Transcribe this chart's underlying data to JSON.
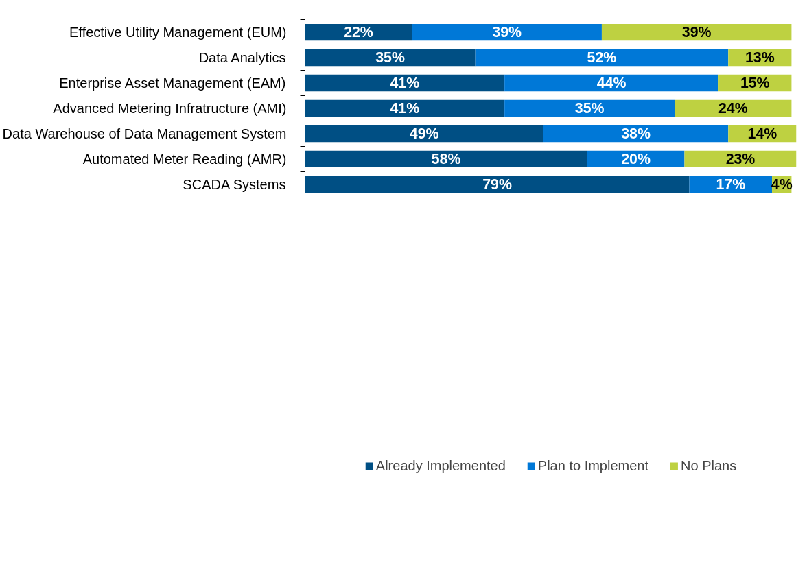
{
  "chart_data": {
    "type": "bar",
    "orientation": "horizontal",
    "stacked": true,
    "data_labels": true,
    "legend": "bottom",
    "grid": false,
    "tick_labels": "y",
    "categories": [
      "Effective Utility Management (EUM)",
      "Data Analytics",
      "Enterprise Asset Management (EAM)",
      "Advanced Metering Infratructure (AMI)",
      "Data Warehouse of Data Management System",
      "Automated Meter Reading (AMR)",
      "SCADA Systems"
    ],
    "series": [
      {
        "name": "Already Implemented",
        "color": "#004f84",
        "values": [
          22,
          35,
          41,
          41,
          49,
          58,
          79
        ],
        "value_labels": [
          "22%",
          "35%",
          "41%",
          "41%",
          "49%",
          "58%",
          "79%"
        ]
      },
      {
        "name": "Plan to Implement",
        "color": "#0078d7",
        "values": [
          39,
          52,
          44,
          35,
          38,
          20,
          17
        ],
        "value_labels": [
          "39%",
          "52%",
          "44%",
          "35%",
          "38%",
          "20%",
          "17%"
        ]
      },
      {
        "name": "No Plans",
        "color": "#bed141",
        "values": [
          39,
          13,
          15,
          24,
          14,
          23,
          4
        ],
        "value_labels": [
          "39%",
          "13%",
          "15%",
          "24%",
          "14%",
          "23%",
          "4%"
        ]
      }
    ]
  }
}
